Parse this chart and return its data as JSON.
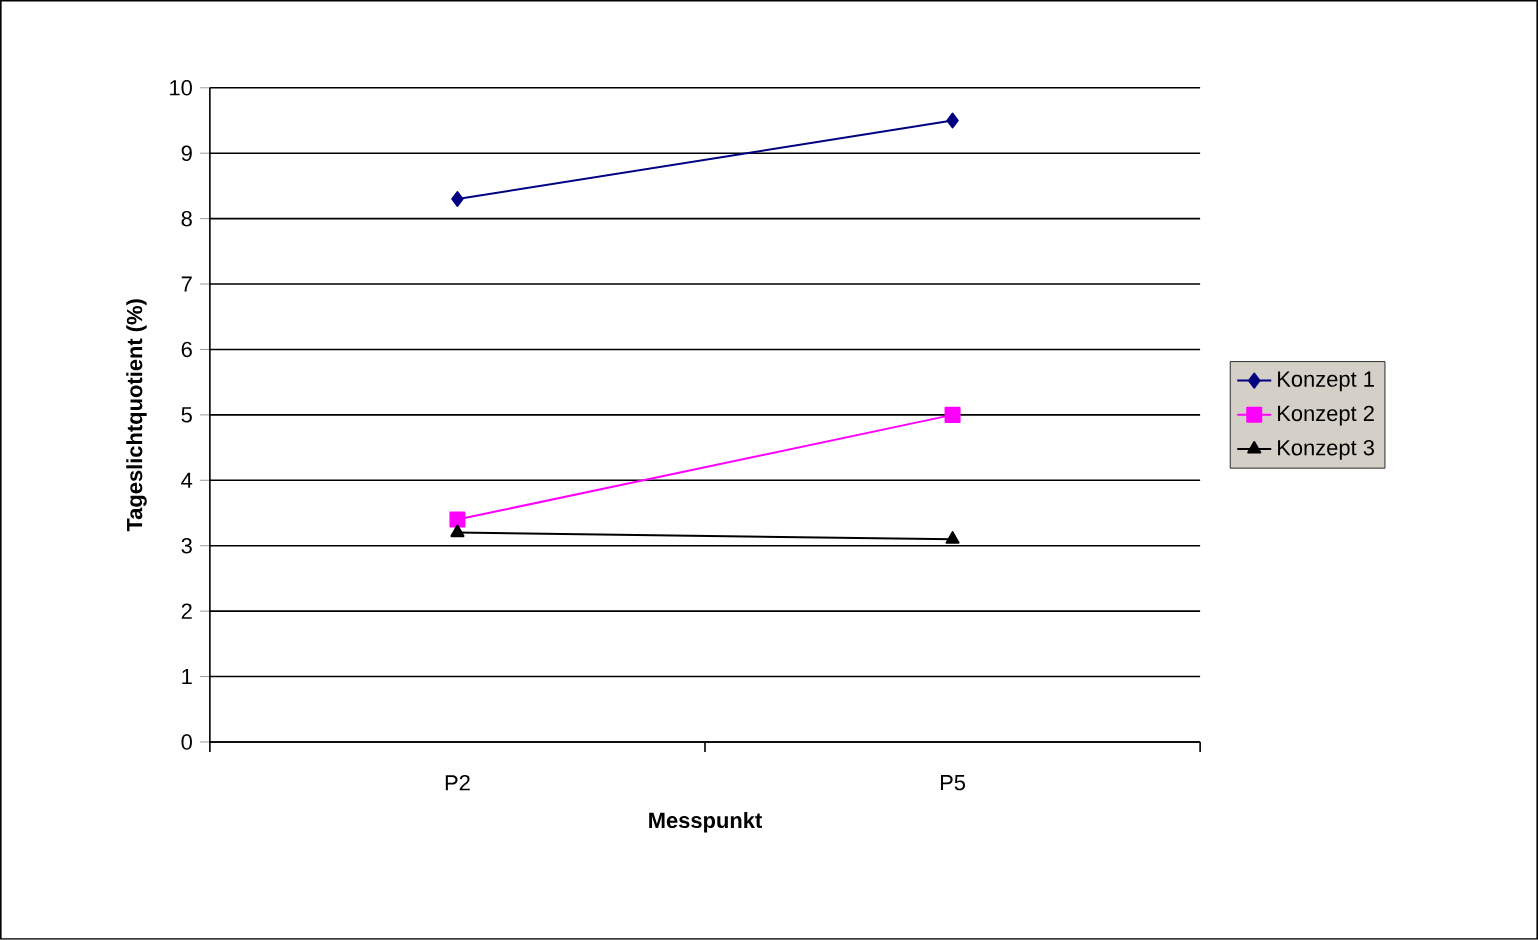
{
  "chart_data": {
    "type": "line",
    "xlabel": "Messpunkt",
    "ylabel": "Tageslichtquotient (%)",
    "categories": [
      "P2",
      "P5"
    ],
    "series": [
      {
        "name": "Konzept 1",
        "color": "#000080",
        "values": [
          8.3,
          9.5
        ],
        "marker": "diamond"
      },
      {
        "name": "Konzept 2",
        "color": "#ff00ff",
        "values": [
          3.4,
          5.0
        ],
        "marker": "square"
      },
      {
        "name": "Konzept 3",
        "color": "#000000",
        "values": [
          3.2,
          3.1
        ],
        "marker": "triangle"
      }
    ],
    "ylim": [
      0,
      10
    ],
    "yticks": [
      0,
      1,
      2,
      3,
      4,
      5,
      6,
      7,
      8,
      9,
      10
    ],
    "grid": "y",
    "legend": "right",
    "line_style": "solid"
  }
}
